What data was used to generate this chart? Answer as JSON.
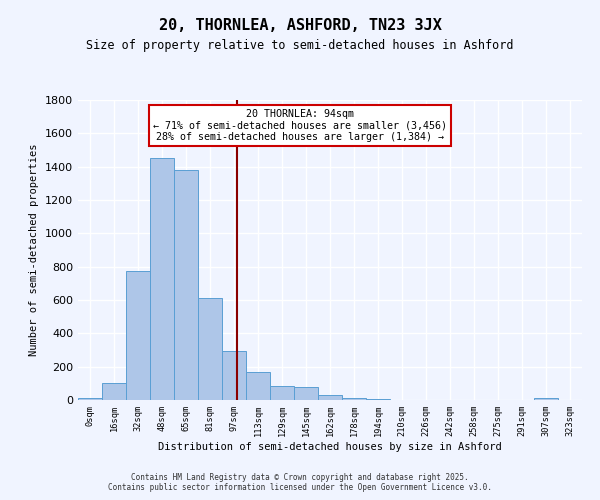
{
  "title_line1": "20, THORNLEA, ASHFORD, TN23 3JX",
  "title_line2": "Size of property relative to semi-detached houses in Ashford",
  "xlabel": "Distribution of semi-detached houses by size in Ashford",
  "ylabel": "Number of semi-detached properties",
  "bin_labels": [
    "0sqm",
    "16sqm",
    "32sqm",
    "48sqm",
    "65sqm",
    "81sqm",
    "97sqm",
    "113sqm",
    "129sqm",
    "145sqm",
    "162sqm",
    "178sqm",
    "194sqm",
    "210sqm",
    "226sqm",
    "242sqm",
    "258sqm",
    "275sqm",
    "291sqm",
    "307sqm",
    "323sqm"
  ],
  "bar_values": [
    10,
    100,
    775,
    1450,
    1380,
    610,
    295,
    170,
    85,
    80,
    30,
    15,
    5,
    0,
    0,
    0,
    0,
    0,
    0,
    10,
    0
  ],
  "bar_color": "#aec6e8",
  "bar_edge_color": "#5a9fd4",
  "vline_x": 6.125,
  "annotation_title": "20 THORNLEA: 94sqm",
  "annotation_line1": "← 71% of semi-detached houses are smaller (3,456)",
  "annotation_line2": "28% of semi-detached houses are larger (1,384) →",
  "vline_color": "#8b0000",
  "annotation_box_color": "#ffffff",
  "annotation_box_edge": "#cc0000",
  "footer_line1": "Contains HM Land Registry data © Crown copyright and database right 2025.",
  "footer_line2": "Contains public sector information licensed under the Open Government Licence v3.0.",
  "background_color": "#f0f4ff",
  "grid_color": "#ffffff",
  "ylim": [
    0,
    1800
  ],
  "yticks": [
    0,
    200,
    400,
    600,
    800,
    1000,
    1200,
    1400,
    1600,
    1800
  ]
}
